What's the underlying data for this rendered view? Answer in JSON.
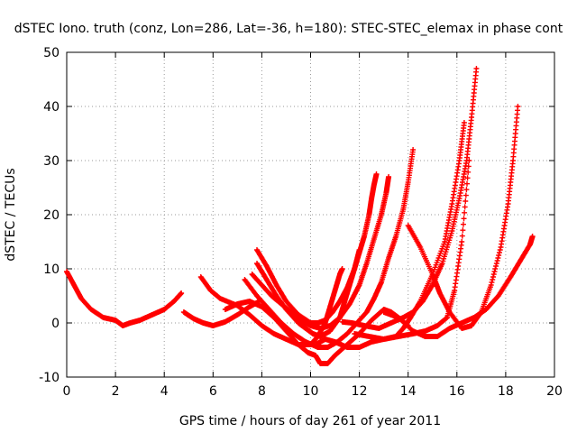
{
  "chart_data": {
    "type": "scatter",
    "title": "dSTEC Iono. truth (conz, Lon=286, Lat=-36, h=180): STEC-STEC_elemax in phase cont",
    "xlabel": "GPS time / hours of day 261 of year 2011",
    "ylabel": "dSTEC  / TECUs",
    "xlim": [
      0,
      20
    ],
    "ylim": [
      -10,
      50
    ],
    "x_ticks": [
      "0",
      "2",
      "4",
      "6",
      "8",
      "10",
      "12",
      "14",
      "16",
      "18",
      "20"
    ],
    "y_ticks": [
      "-10",
      "0",
      "10",
      "20",
      "30",
      "40",
      "50"
    ],
    "grid": true,
    "legend": "none",
    "marker": "+",
    "color": "#ff0000",
    "series": [
      {
        "x": [
          0,
          0.3,
          0.6,
          1,
          1.5,
          2,
          2.3,
          2.6,
          3,
          3.5,
          4,
          4.4,
          4.7
        ],
        "y": [
          9.5,
          7,
          4.5,
          2.5,
          1,
          0.5,
          -0.5,
          0,
          0.5,
          1.5,
          2.5,
          4,
          5.5
        ]
      },
      {
        "x": [
          4.8,
          5.2,
          5.6,
          6,
          6.5,
          7,
          7.5,
          7.9
        ],
        "y": [
          2,
          0.8,
          0,
          -0.5,
          0.2,
          1.5,
          3,
          4
        ]
      },
      {
        "x": [
          5.5,
          5.9,
          6.3,
          7,
          7.5,
          8,
          8.5,
          9,
          9.5,
          10,
          10.3,
          10.6,
          10.8,
          11,
          11.2,
          11.3
        ],
        "y": [
          8.5,
          6,
          4.5,
          3.2,
          1.5,
          -0.5,
          -2,
          -3,
          -4,
          -4,
          -2.5,
          0,
          3,
          6,
          9,
          10
        ]
      },
      {
        "x": [
          7.8,
          8.2,
          8.6,
          9,
          9.5,
          10,
          10.3,
          10.6,
          10.9,
          11.2,
          11.5,
          11.8,
          12,
          12.2,
          12.4,
          12.5,
          12.6,
          12.7
        ],
        "y": [
          13.5,
          10.5,
          7,
          4,
          1.5,
          0,
          0,
          0.5,
          2,
          4,
          6.5,
          10,
          13,
          16,
          20,
          23,
          25.5,
          27.5
        ]
      },
      {
        "x": [
          7.6,
          8,
          8.4,
          8.8,
          9.2,
          9.6,
          10,
          10.4,
          10.8,
          11.2,
          11.6,
          12,
          12.3,
          12.6,
          12.9,
          13.1,
          13.2
        ],
        "y": [
          9,
          7,
          5,
          3.5,
          2,
          0.5,
          -0.5,
          -1,
          -0.5,
          1,
          3.5,
          7,
          11,
          15.5,
          20,
          24,
          27
        ]
      },
      {
        "x": [
          7.3,
          7.8,
          8.3,
          8.8,
          9.3,
          9.8,
          10.3,
          10.7,
          11.1,
          11.5,
          11.9,
          12.3,
          12.6,
          12.9,
          13.2,
          13.5,
          13.8,
          14,
          14.2
        ],
        "y": [
          8,
          5,
          2.5,
          0,
          -2,
          -3.5,
          -4.5,
          -4.5,
          -3.5,
          -2,
          0,
          2,
          4.5,
          7.5,
          12,
          16,
          21,
          26,
          32
        ]
      },
      {
        "x": [
          7.8,
          8.2,
          8.6,
          9,
          9.5,
          9.8,
          10.1,
          10.4,
          10.8,
          11.2,
          11.4,
          11.6,
          11.8,
          12
        ],
        "y": [
          11,
          8,
          5,
          2.5,
          0,
          -1,
          -2,
          -2.5,
          -1.5,
          1,
          4,
          7,
          10,
          13.5
        ]
      },
      {
        "x": [
          6.5,
          7,
          7.5,
          8,
          8.5,
          9,
          9.5,
          9.9,
          10.2,
          10.4,
          10.7,
          11,
          11.5,
          12,
          12.5,
          13,
          13.3,
          13.6,
          14
        ],
        "y": [
          2.5,
          3.5,
          4,
          3,
          1,
          -1.5,
          -4,
          -5.5,
          -6,
          -7.5,
          -7.5,
          -6,
          -4,
          -2,
          0.5,
          2.5,
          2,
          1,
          -0.5
        ]
      },
      {
        "x": [
          10.2,
          10.6,
          11,
          11.5,
          12,
          12.5,
          13,
          13.5,
          13.8,
          14.1,
          14.5,
          15,
          15.5,
          15.8,
          16.1,
          16.3
        ],
        "y": [
          -4,
          -3,
          -3.5,
          -4.5,
          -4.5,
          -3.5,
          -3,
          -2.5,
          -1,
          1,
          4,
          9,
          15,
          22,
          30,
          37
        ]
      },
      {
        "x": [
          11.3,
          11.7,
          12.2,
          12.8,
          13.3,
          13.8,
          14.2,
          14.6,
          15,
          15.4,
          15.8,
          16.1,
          16.4,
          16.6,
          16.8
        ],
        "y": [
          0.2,
          0,
          -0.5,
          -1,
          0,
          1,
          2,
          4,
          7,
          11,
          17,
          23,
          30,
          38,
          47
        ]
      },
      {
        "x": [
          11.8,
          12.4,
          13,
          13.6,
          14.2,
          14.7,
          15.2,
          15.6,
          15.9,
          16.2,
          16.5
        ],
        "y": [
          -2,
          -2.5,
          -3,
          -2.5,
          -2,
          -1.5,
          -0.5,
          1,
          6,
          15,
          30
        ]
      },
      {
        "x": [
          14,
          14.5,
          15,
          15.3,
          15.7,
          16.2,
          16.6,
          17,
          17.4,
          17.8,
          18.1,
          18.3,
          18.5
        ],
        "y": [
          18,
          14,
          9,
          5.5,
          2,
          -1,
          -0.5,
          2,
          7,
          14,
          22,
          30,
          40
        ]
      },
      {
        "x": [
          13,
          13.6,
          14.2,
          14.7,
          15.2,
          15.7,
          16.2,
          16.7,
          17.2,
          17.7,
          18.2,
          18.6,
          19,
          19.1
        ],
        "y": [
          2,
          1,
          -1.5,
          -2.5,
          -2.5,
          -1,
          0,
          1,
          2.5,
          5,
          8.5,
          11.5,
          14.5,
          16
        ]
      }
    ]
  }
}
